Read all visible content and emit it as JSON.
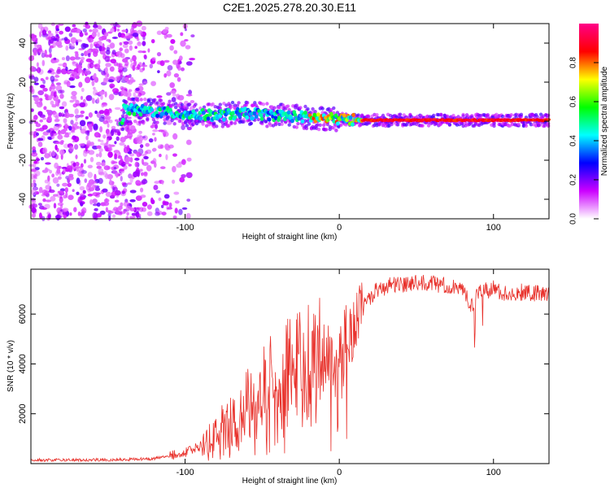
{
  "title": "C2E1.2025.278.20.30.E11",
  "chart_data": [
    {
      "type": "heatmap",
      "xlabel": "Height of straight line (km)",
      "ylabel": "Frequency (Hz)",
      "xlim": [
        -200,
        136
      ],
      "ylim": [
        -50,
        50
      ],
      "xticks": [
        -100,
        0,
        100
      ],
      "yticks": [
        -40,
        -20,
        0,
        20,
        40
      ],
      "colorbar": {
        "label": "Normalized spectral amplitude",
        "range": [
          0,
          1
        ],
        "ticks": [
          0.0,
          0.2,
          0.4,
          0.6,
          0.8
        ],
        "tick_labels": [
          "0.0",
          "0.2",
          "0.4",
          "0.6",
          "0.8"
        ],
        "colors": [
          "#ffffff",
          "#cc00ff",
          "#0000ff",
          "#00ffff",
          "#00ff00",
          "#ffff00",
          "#ff0000",
          "#ff0088"
        ]
      },
      "ridge": [
        {
          "x": -140,
          "y": 6
        },
        {
          "x": -120,
          "y": 5
        },
        {
          "x": -100,
          "y": 3.5
        },
        {
          "x": -80,
          "y": 3
        },
        {
          "x": -60,
          "y": 4
        },
        {
          "x": -40,
          "y": 3
        },
        {
          "x": -20,
          "y": 2
        },
        {
          "x": 0,
          "y": 1
        },
        {
          "x": 20,
          "y": 0.5
        },
        {
          "x": 50,
          "y": 0.5
        },
        {
          "x": 100,
          "y": 0.5
        },
        {
          "x": 136,
          "y": 0.5
        }
      ]
    },
    {
      "type": "line",
      "xlabel": "Height of straight line (km)",
      "ylabel": "SNR (10 * v/v)",
      "xlim": [
        -200,
        136
      ],
      "ylim": [
        0,
        7800
      ],
      "xticks": [
        -100,
        0,
        100
      ],
      "yticks": [
        2000,
        4000,
        6000
      ],
      "color": "#e8302a",
      "series": [
        {
          "name": "SNR",
          "x": [
            -200,
            -180,
            -160,
            -140,
            -120,
            -110,
            -100,
            -90,
            -80,
            -70,
            -60,
            -50,
            -40,
            -30,
            -20,
            -15,
            -10,
            -5,
            0,
            5,
            10,
            15,
            20,
            25,
            30,
            40,
            50,
            60,
            70,
            80,
            85,
            90,
            100,
            110,
            120,
            130,
            136
          ],
          "y": [
            150,
            140,
            150,
            160,
            200,
            300,
            450,
            700,
            1200,
            1800,
            2400,
            2900,
            3300,
            3700,
            4000,
            4300,
            4400,
            4500,
            4700,
            5100,
            5500,
            6200,
            6700,
            7000,
            7100,
            7200,
            7300,
            7250,
            7100,
            7100,
            6200,
            6900,
            7000,
            6800,
            6900,
            6800,
            6800
          ]
        }
      ]
    }
  ]
}
